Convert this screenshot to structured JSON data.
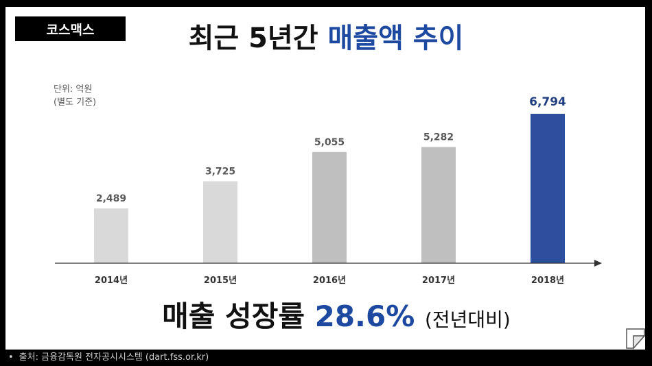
{
  "brand": "코스맥스",
  "title": {
    "main": "최근 5년간",
    "accent": "매출액 추이"
  },
  "unit_note": {
    "line1": "단위: 억원",
    "line2": "(별도 기준)"
  },
  "growth": {
    "label": "매출 성장률",
    "value": "28.6%",
    "comparison": "(전년대비)"
  },
  "source": {
    "bullet": "•",
    "text": "출처: 금융감독원 전자공시시스템 (dart.fss.or.kr)"
  },
  "colors": {
    "bar_light": "#d9d9d9",
    "bar_mid": "#bfbfbf",
    "bar_highlight": "#2e4f9e",
    "accent_text": "#1d4aa0"
  },
  "chart_data": {
    "type": "bar",
    "categories": [
      "2014년",
      "2015년",
      "2016년",
      "2017년",
      "2018년"
    ],
    "values": [
      2489,
      3725,
      5055,
      5282,
      6794
    ],
    "value_labels": [
      "2,489",
      "3,725",
      "5,055",
      "5,282",
      "6,794"
    ],
    "bar_color_keys": [
      "bar_light",
      "bar_light",
      "bar_mid",
      "bar_mid",
      "bar_highlight"
    ],
    "highlight_index": 4,
    "ylim": [
      0,
      6794
    ],
    "grid": false,
    "legend": "none"
  }
}
